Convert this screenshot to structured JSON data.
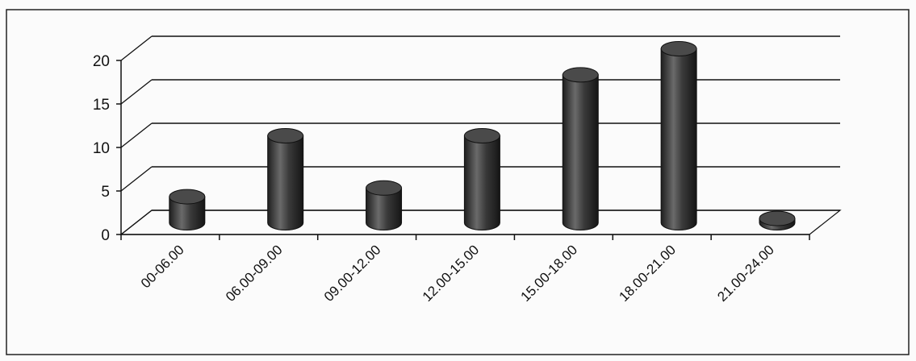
{
  "chart_data": {
    "type": "bar",
    "style": "3d-cylinder",
    "categories": [
      "00-06.00",
      "06.00-09.00",
      "09.00-12.00",
      "12.00-15.00",
      "15.00-18.00",
      "18.00-21.00",
      "21.00-24.00"
    ],
    "values": [
      3,
      10,
      4,
      10,
      17,
      20,
      0.5
    ],
    "title": "",
    "xlabel": "",
    "ylabel": "",
    "ylim": [
      0,
      20
    ],
    "yticks": [
      "0",
      "5",
      "10",
      "15",
      "20"
    ],
    "grid": true,
    "legend": "none",
    "colors": {
      "bar": "#4a4a4a",
      "bar_dark": "#1e1e1e",
      "bar_light": "#7a7a7a",
      "grid": "#111111",
      "frame": "#222222"
    }
  }
}
